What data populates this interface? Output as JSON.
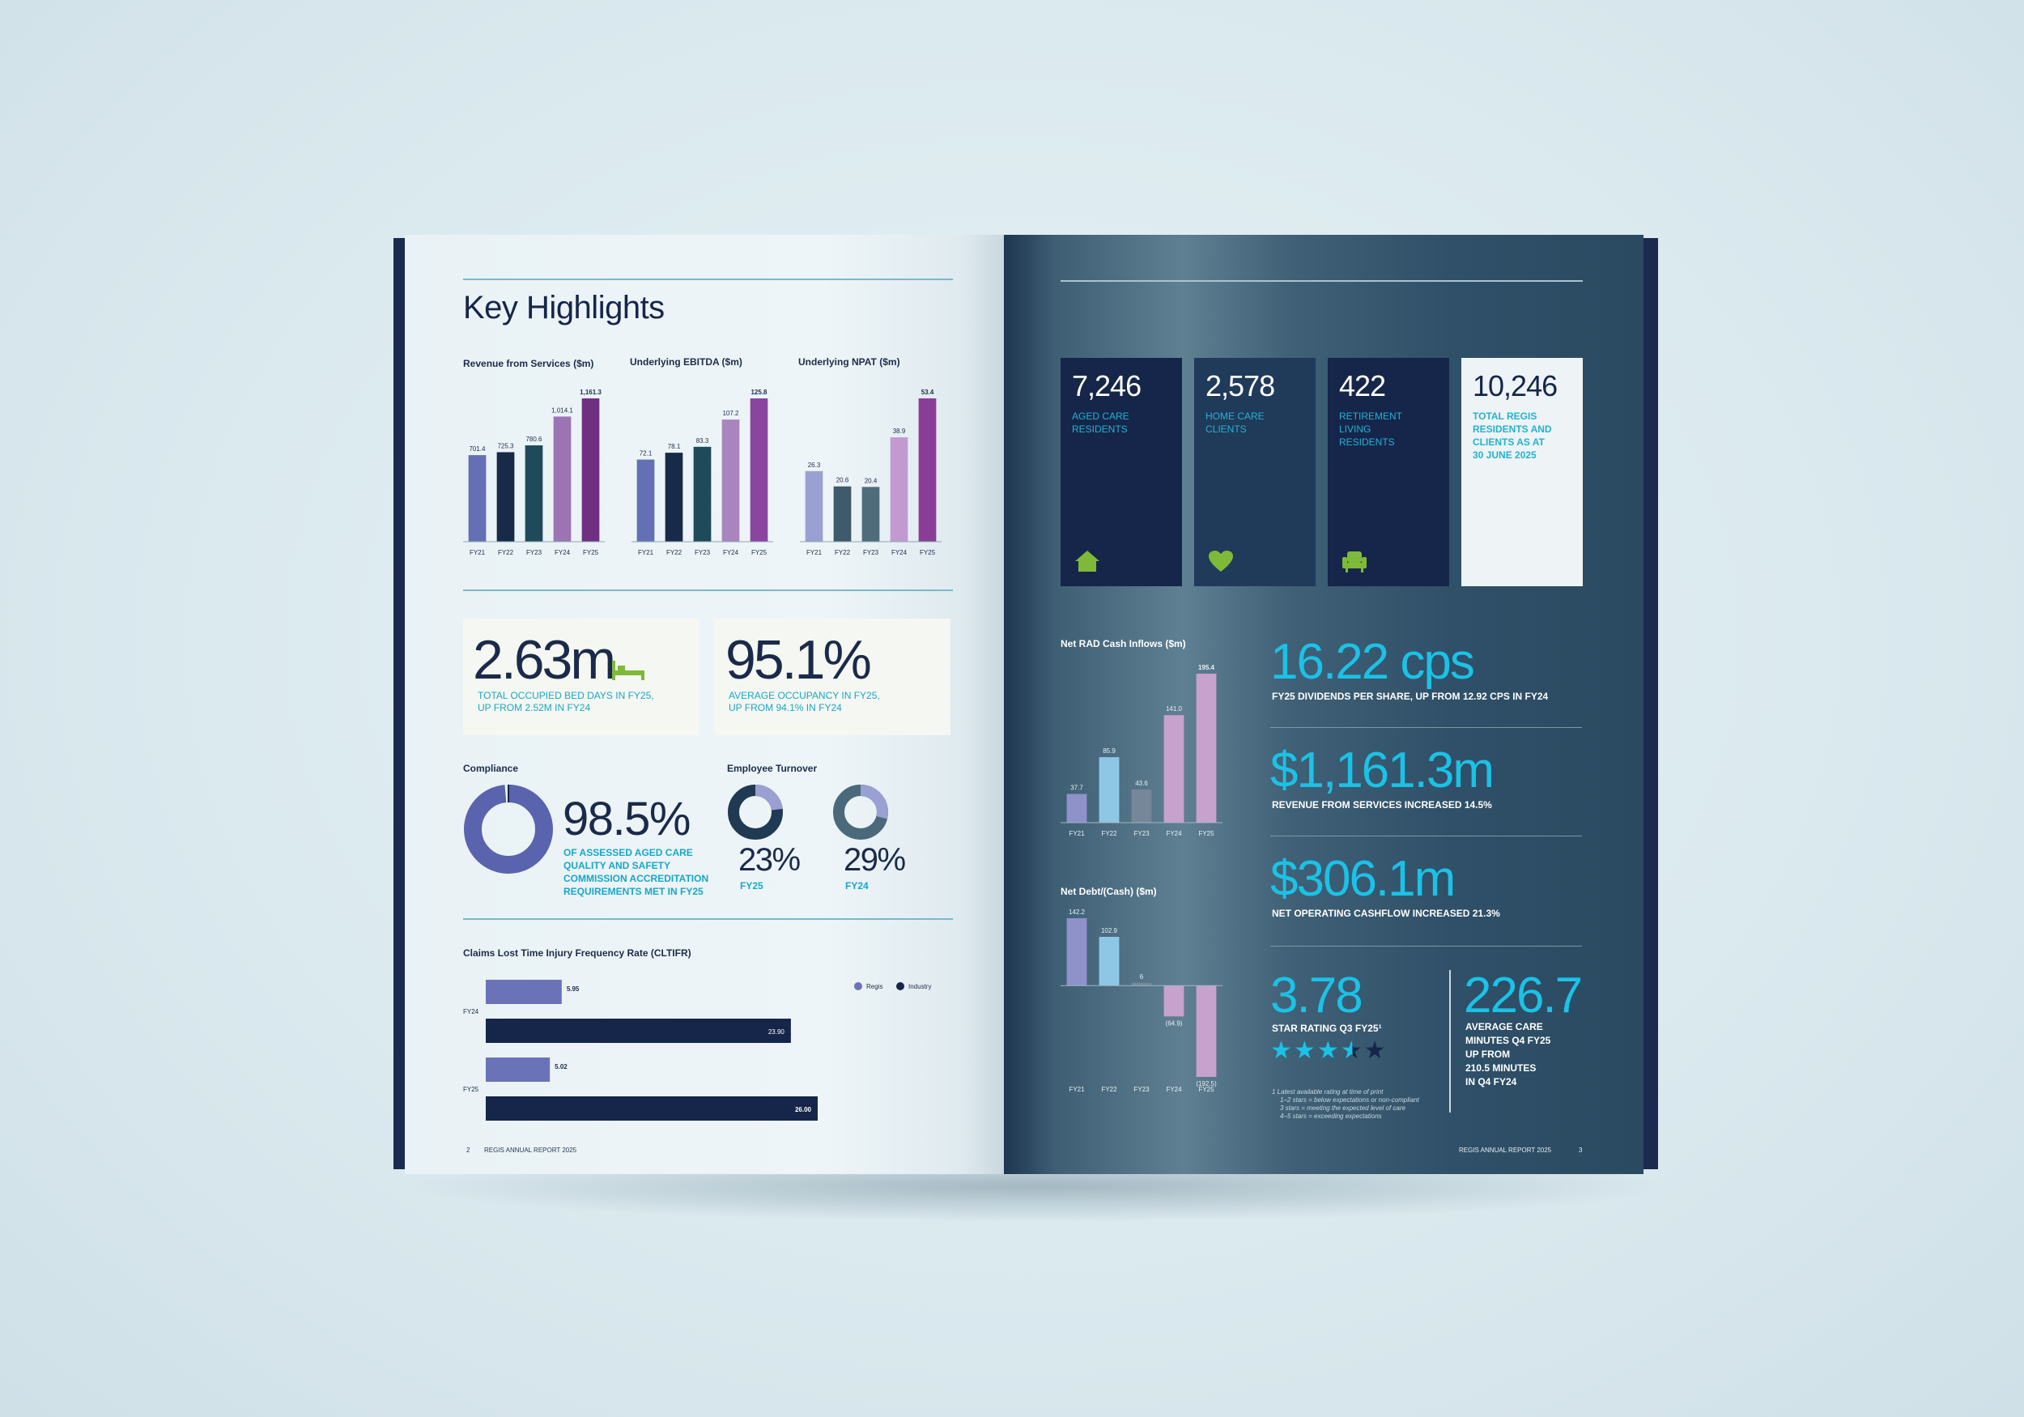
{
  "left": {
    "title": "Key Highlights",
    "revenue_chart": {
      "title": "Revenue from Services ($m)",
      "categories": [
        "FY21",
        "FY22",
        "FY23",
        "FY24",
        "FY25"
      ],
      "labels": [
        "701.4",
        "725.3",
        "780.6",
        "1,014.1",
        "1,161.3"
      ],
      "values": [
        701.4,
        725.3,
        780.6,
        1014.1,
        1161.3
      ],
      "colors": [
        "#6470b3",
        "#172a48",
        "#1f4a5a",
        "#9c73b3",
        "#6f2f82"
      ],
      "ylim": [
        0,
        1161.3
      ]
    },
    "ebitda_chart": {
      "title": "Underlying EBITDA ($m)",
      "categories": [
        "FY21",
        "FY22",
        "FY23",
        "FY24",
        "FY25"
      ],
      "labels": [
        "72.1",
        "78.1",
        "83.3",
        "107.2",
        "125.8"
      ],
      "values": [
        72.1,
        78.1,
        83.3,
        107.2,
        125.8
      ],
      "colors": [
        "#6470b3",
        "#172a48",
        "#1f4a5a",
        "#a985c0",
        "#8a45a0"
      ],
      "ylim": [
        0,
        125.8
      ]
    },
    "npat_chart": {
      "title": "Underlying NPAT ($m)",
      "categories": [
        "FY21",
        "FY22",
        "FY23",
        "FY24",
        "FY25"
      ],
      "labels": [
        "26.3",
        "20.6",
        "20.4",
        "38.9",
        "53.4"
      ],
      "values": [
        26.3,
        20.6,
        20.4,
        38.9,
        53.4
      ],
      "colors": [
        "#9aa0d2",
        "#3f5a6a",
        "#4f6c7a",
        "#c39ad0",
        "#8a3d96"
      ],
      "ylim": [
        0,
        53.4
      ]
    },
    "bed_days": {
      "value": "2.63m",
      "caption_1": "TOTAL OCCUPIED BED DAYS IN FY25,",
      "caption_2": "UP FROM 2.52M IN FY24",
      "icon": "bed-icon"
    },
    "occupancy": {
      "value": "95.1%",
      "caption_1": "AVERAGE OCCUPANCY IN FY25,",
      "caption_2": "UP FROM 94.1% IN FY24"
    },
    "compliance": {
      "title": "Compliance",
      "value": "98.5%",
      "fraction": 0.985,
      "caption": [
        "OF ASSESSED AGED CARE",
        "QUALITY AND SAFETY",
        "COMMISSION ACCREDITATION",
        "REQUIREMENTS MET IN FY25"
      ]
    },
    "turnover": {
      "title": "Employee Turnover",
      "fy25": {
        "value": "23%",
        "label": "FY25",
        "fraction": 0.23
      },
      "fy24": {
        "value": "29%",
        "label": "FY24",
        "fraction": 0.29
      }
    },
    "cltifr": {
      "title": "Claims Lost Time Injury Frequency Rate (CLTIFR)",
      "legend": [
        "Regis",
        "Industry"
      ],
      "colors": {
        "regis": "#6b73b8",
        "industry": "#16264a"
      },
      "groups": [
        {
          "label": "FY24",
          "regis": 5.95,
          "regis_label": "5.95",
          "industry": 23.9,
          "industry_label": "23.90"
        },
        {
          "label": "FY25",
          "regis": 5.02,
          "regis_label": "5.02",
          "industry": 26.0,
          "industry_label": "26.00"
        }
      ],
      "xlim": [
        0,
        26.0
      ]
    },
    "footer": {
      "page": "2",
      "text": "REGIS ANNUAL REPORT 2025"
    }
  },
  "right": {
    "tiles": [
      {
        "value": "7,246",
        "caption": [
          "AGED CARE",
          "RESIDENTS"
        ],
        "icon": "house-icon"
      },
      {
        "value": "2,578",
        "caption": [
          "HOME CARE",
          "CLIENTS"
        ],
        "icon": "heart-icon"
      },
      {
        "value": "422",
        "caption": [
          "RETIREMENT",
          "LIVING",
          "RESIDENTS"
        ],
        "icon": "armchair-icon"
      },
      {
        "value": "10,246",
        "caption": [
          "TOTAL REGIS",
          "RESIDENTS AND",
          "CLIENTS AS AT",
          "30 JUNE 2025"
        ]
      }
    ],
    "rad_chart": {
      "title": "Net RAD Cash Inflows ($m)",
      "categories": [
        "FY21",
        "FY22",
        "FY23",
        "FY24",
        "FY25"
      ],
      "labels": [
        "37.7",
        "85.9",
        "43.6",
        "141.0",
        "195.4"
      ],
      "values": [
        37.7,
        85.9,
        43.6,
        141.0,
        195.4
      ],
      "colors": [
        "#8f91c9",
        "#8ec7e6",
        "#76879a",
        "#c6a2cc",
        "#c6a2cc"
      ],
      "ylim": [
        0,
        195.4
      ]
    },
    "debt_chart": {
      "title": "Net Debt/(Cash) ($m)",
      "categories": [
        "FY21",
        "FY22",
        "FY23",
        "FY24",
        "FY25"
      ],
      "labels": [
        "142.2",
        "102.9",
        "6",
        "(64.9)",
        "(192.5)"
      ],
      "values": [
        142.2,
        102.9,
        6,
        -64.9,
        -192.5
      ],
      "colors": [
        "#8f91c9",
        "#8ec7e6",
        "#76879a",
        "#c6a2cc",
        "#c6a2cc"
      ],
      "ylim": [
        -192.5,
        142.2
      ]
    },
    "kpis": [
      {
        "value": "16.22 cps",
        "caption": "FY25 DIVIDENDS PER SHARE, UP FROM 12.92 CPS IN FY24"
      },
      {
        "value": "$1,161.3m",
        "caption": "REVENUE FROM SERVICES INCREASED 14.5%"
      },
      {
        "value": "$306.1m",
        "caption": "NET OPERATING CASHFLOW INCREASED 21.3%"
      }
    ],
    "star_rating": {
      "value": "3.78",
      "caption": "STAR RATING Q3 FY25¹",
      "stars": 3.5,
      "max": 5
    },
    "care_minutes": {
      "value": "226.7",
      "caption": [
        "AVERAGE CARE",
        "MINUTES Q4 FY25",
        "UP FROM",
        "210.5 MINUTES",
        "IN Q4 FY24"
      ]
    },
    "footnote": [
      "1  Latest available rating at time of print",
      "1–2 stars = below expectations or non-compliant",
      "3 stars = meeting the expected level of care",
      "4–5 stars = exceeding expectations"
    ],
    "footer": {
      "page": "3",
      "text": "REGIS ANNUAL REPORT 2025"
    }
  }
}
